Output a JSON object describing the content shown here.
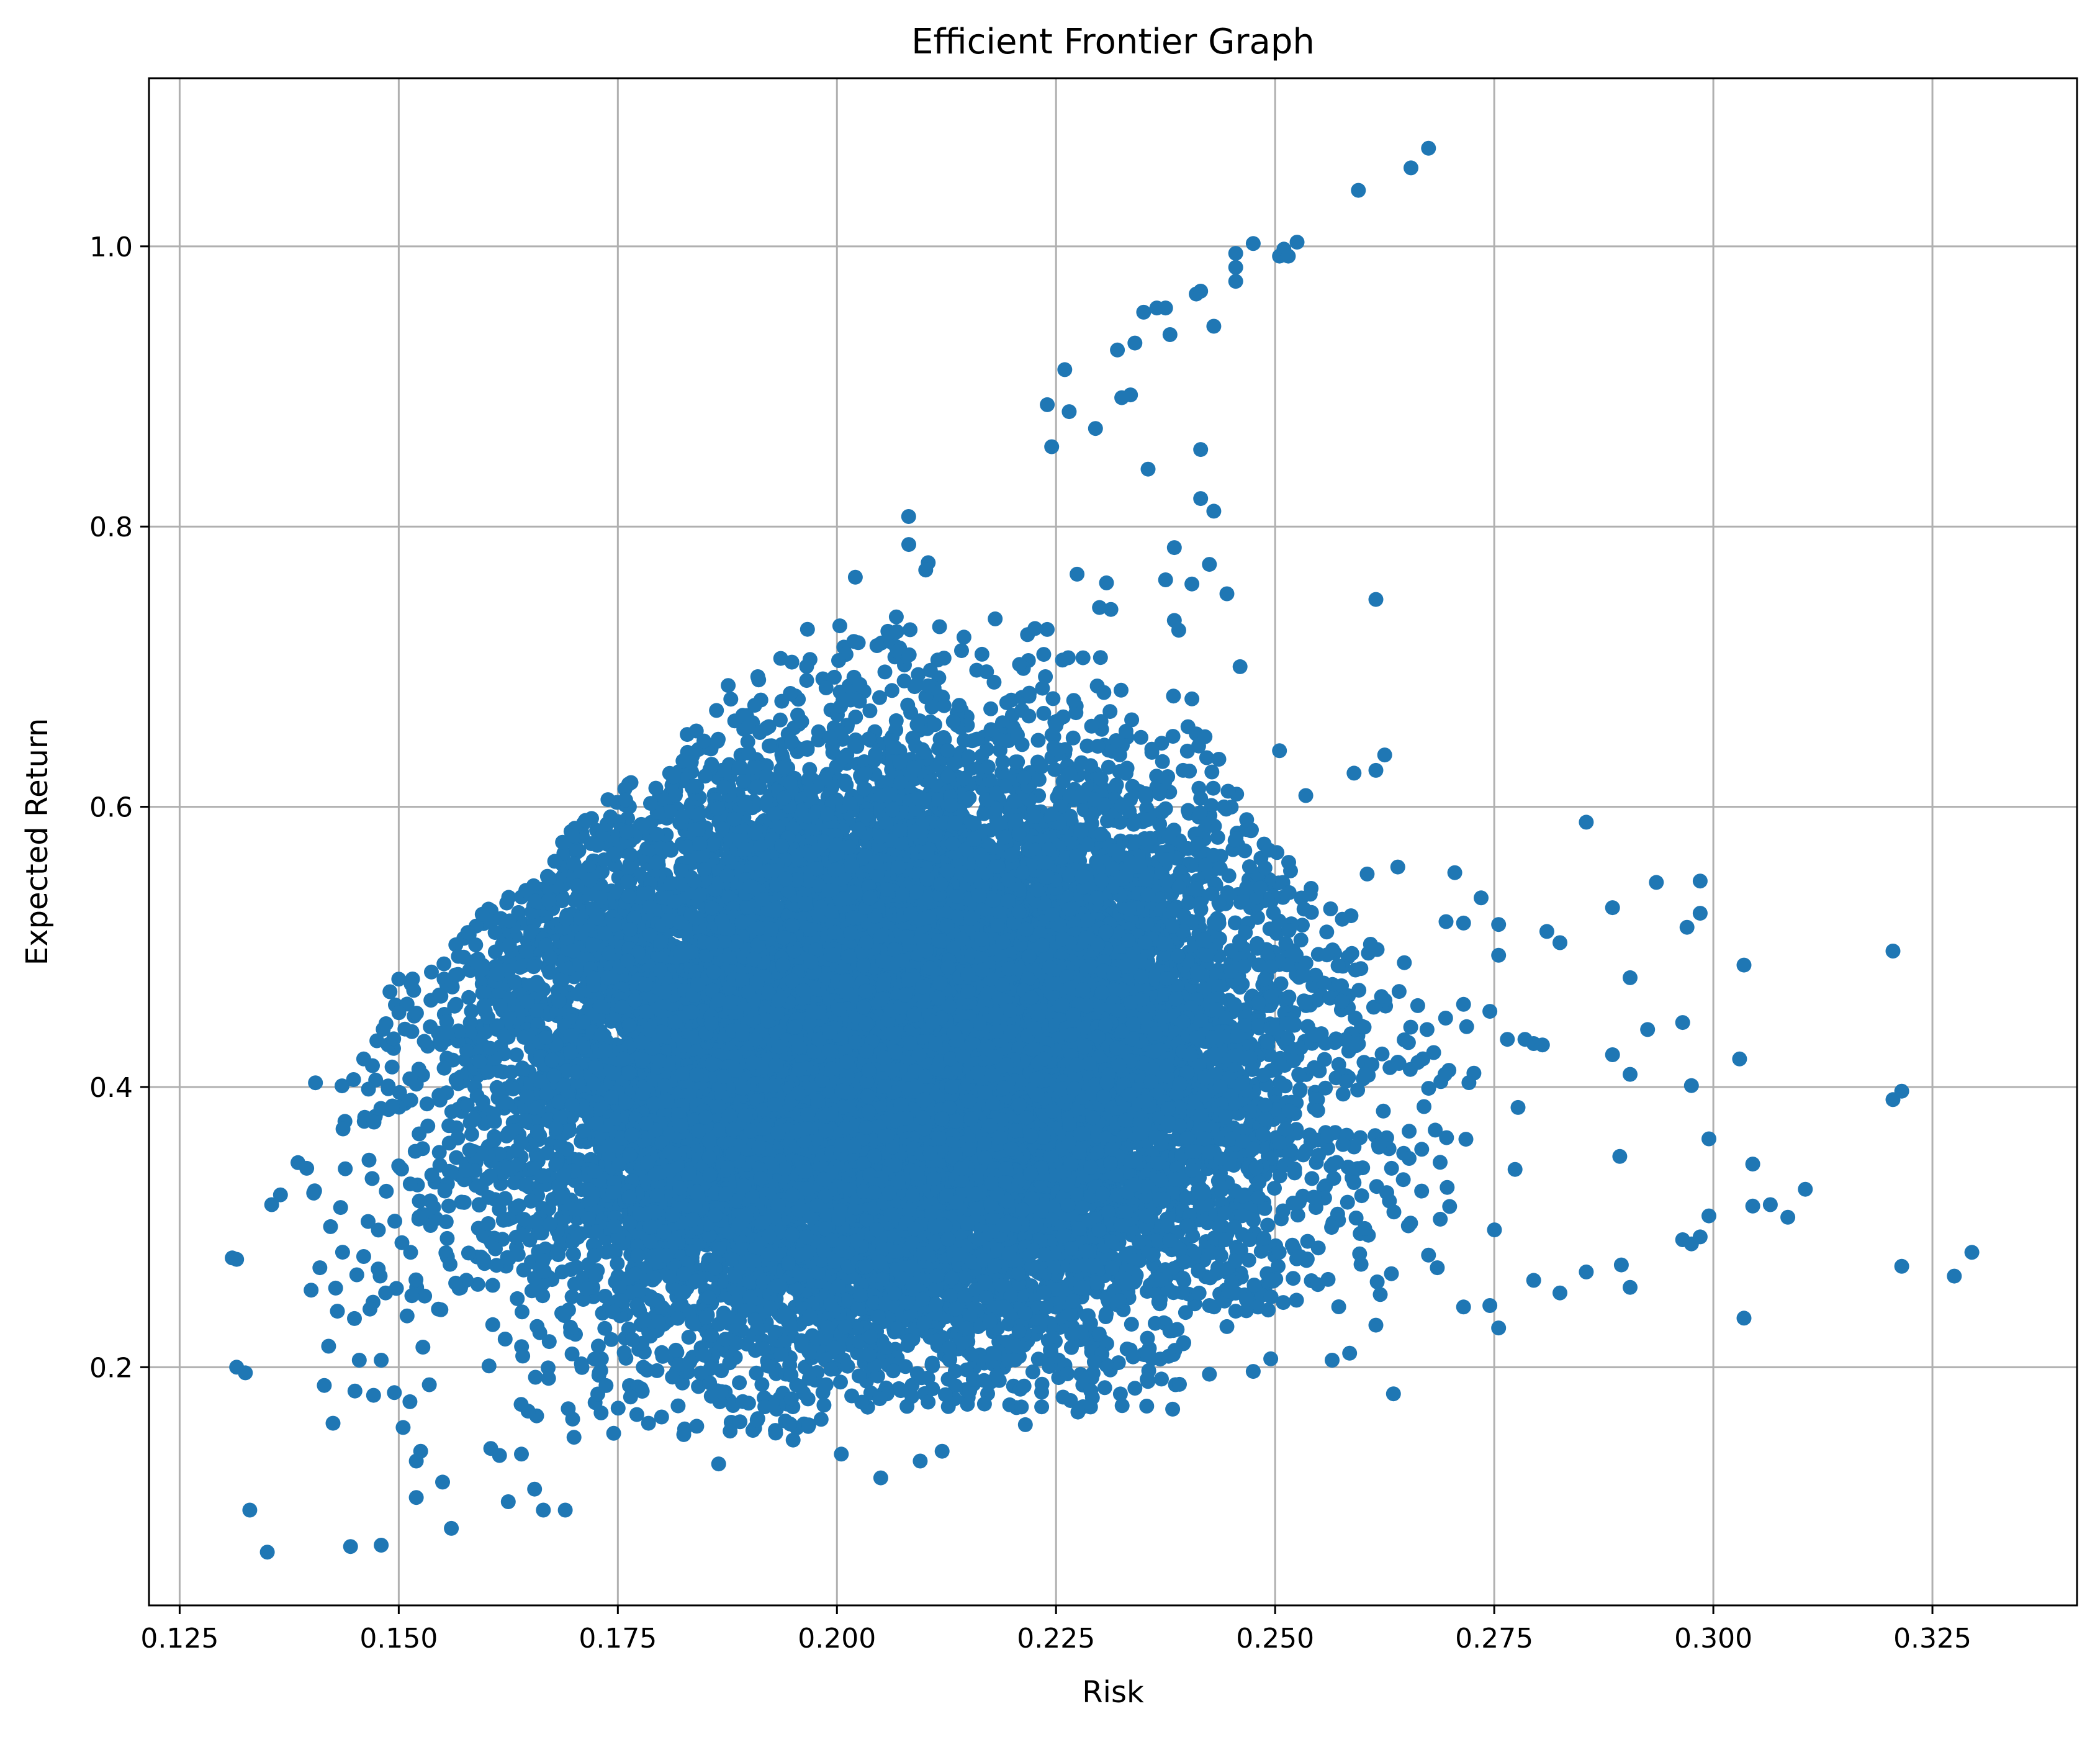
{
  "chart_data": {
    "type": "scatter",
    "title": "Efficient Frontier Graph",
    "xlabel": "Risk",
    "ylabel": "Expected Return",
    "xlim": [
      0.1215,
      0.3415
    ],
    "ylim": [
      0.03,
      1.12
    ],
    "xticks": [
      0.125,
      0.15,
      0.175,
      0.2,
      0.225,
      0.25,
      0.275,
      0.3,
      0.325
    ],
    "xtick_labels": [
      "0.125",
      "0.150",
      "0.175",
      "0.200",
      "0.225",
      "0.250",
      "0.275",
      "0.300",
      "0.325"
    ],
    "yticks": [
      0.2,
      0.4,
      0.6,
      0.8,
      1.0
    ],
    "ytick_labels": [
      "0.2",
      "0.4",
      "0.6",
      "0.8",
      "1.0"
    ],
    "grid": true,
    "legend": "none",
    "marker_color": "#1f77b4",
    "generated_cloud": {
      "count": 18000,
      "seed": 20240613,
      "center_x": 0.206,
      "center_y": 0.42,
      "sigma_x": 0.022,
      "sigma_y": 0.105
    },
    "series": [
      {
        "points": [
          [
            0.131,
            0.278
          ],
          [
            0.1315,
            0.277
          ],
          [
            0.1315,
            0.2
          ],
          [
            0.1325,
            0.196
          ],
          [
            0.133,
            0.098
          ],
          [
            0.135,
            0.068
          ],
          [
            0.1355,
            0.316
          ],
          [
            0.1365,
            0.323
          ],
          [
            0.1385,
            0.346
          ],
          [
            0.1395,
            0.342
          ],
          [
            0.14,
            0.255
          ],
          [
            0.1405,
            0.403
          ],
          [
            0.141,
            0.271
          ],
          [
            0.1415,
            0.187
          ],
          [
            0.142,
            0.215
          ],
          [
            0.1425,
            0.16
          ],
          [
            0.143,
            0.24
          ],
          [
            0.1445,
            0.072
          ],
          [
            0.145,
            0.183
          ],
          [
            0.1455,
            0.205
          ],
          [
            0.146,
            0.279
          ],
          [
            0.146,
            0.42
          ],
          [
            0.1465,
            0.304
          ],
          [
            0.1475,
            0.433
          ],
          [
            0.148,
            0.073
          ],
          [
            0.148,
            0.205
          ],
          [
            0.1485,
            0.253
          ],
          [
            0.149,
            0.468
          ],
          [
            0.15,
            0.477
          ],
          [
            0.1505,
            0.157
          ],
          [
            0.1515,
            0.251
          ],
          [
            0.152,
            0.133
          ],
          [
            0.152,
            0.107
          ],
          [
            0.1525,
            0.14
          ],
          [
            0.155,
            0.118
          ],
          [
            0.156,
            0.085
          ],
          [
            0.1565,
            0.26
          ],
          [
            0.1605,
            0.142
          ],
          [
            0.1615,
            0.137
          ],
          [
            0.1625,
            0.104
          ],
          [
            0.164,
            0.138
          ],
          [
            0.1655,
            0.113
          ],
          [
            0.1665,
            0.098
          ],
          [
            0.169,
            0.098
          ],
          [
            0.17,
            0.15
          ],
          [
            0.1785,
            0.16
          ],
          [
            0.1865,
            0.131
          ],
          [
            0.193,
            0.153
          ],
          [
            0.195,
            0.148
          ],
          [
            0.2005,
            0.138
          ],
          [
            0.205,
            0.121
          ],
          [
            0.2095,
            0.133
          ],
          [
            0.212,
            0.14
          ],
          [
            0.2215,
            0.159
          ],
          [
            0.2275,
            0.168
          ],
          [
            0.234,
            0.185
          ],
          [
            0.2425,
            0.195
          ],
          [
            0.2635,
            0.181
          ],
          [
            0.2595,
            1.04
          ],
          [
            0.2655,
            1.056
          ],
          [
            0.2675,
            1.07
          ],
          [
            0.2475,
            1.002
          ],
          [
            0.2455,
            0.995
          ],
          [
            0.2455,
            0.985
          ],
          [
            0.2455,
            0.975
          ],
          [
            0.2505,
            0.993
          ],
          [
            0.251,
            0.998
          ],
          [
            0.2515,
            0.993
          ],
          [
            0.2525,
            1.003
          ],
          [
            0.241,
            0.966
          ],
          [
            0.2415,
            0.968
          ],
          [
            0.243,
            0.943
          ],
          [
            0.238,
            0.937
          ],
          [
            0.2365,
            0.956
          ],
          [
            0.2375,
            0.956
          ],
          [
            0.234,
            0.931
          ],
          [
            0.235,
            0.953
          ],
          [
            0.232,
            0.926
          ],
          [
            0.226,
            0.912
          ],
          [
            0.2335,
            0.894
          ],
          [
            0.2325,
            0.892
          ],
          [
            0.224,
            0.887
          ],
          [
            0.2245,
            0.857
          ],
          [
            0.2265,
            0.882
          ],
          [
            0.2295,
            0.87
          ],
          [
            0.2355,
            0.841
          ],
          [
            0.2415,
            0.855
          ],
          [
            0.2415,
            0.82
          ],
          [
            0.243,
            0.811
          ],
          [
            0.2385,
            0.785
          ],
          [
            0.2445,
            0.752
          ],
          [
            0.2405,
            0.759
          ],
          [
            0.2385,
            0.733
          ],
          [
            0.239,
            0.726
          ],
          [
            0.2375,
            0.762
          ],
          [
            0.2425,
            0.773
          ],
          [
            0.246,
            0.7
          ],
          [
            0.2405,
            0.677
          ],
          [
            0.241,
            0.652
          ],
          [
            0.242,
            0.65
          ],
          [
            0.2395,
            0.626
          ],
          [
            0.2415,
            0.606
          ],
          [
            0.2505,
            0.64
          ],
          [
            0.2535,
            0.608
          ],
          [
            0.2615,
            0.748
          ],
          [
            0.2625,
            0.637
          ],
          [
            0.2615,
            0.626
          ],
          [
            0.259,
            0.624
          ],
          [
            0.2605,
            0.552
          ],
          [
            0.264,
            0.557
          ],
          [
            0.2705,
            0.553
          ],
          [
            0.2735,
            0.535
          ],
          [
            0.2755,
            0.516
          ],
          [
            0.2695,
            0.518
          ],
          [
            0.2715,
            0.517
          ],
          [
            0.2755,
            0.494
          ],
          [
            0.2855,
            0.589
          ],
          [
            0.2885,
            0.528
          ],
          [
            0.2935,
            0.546
          ],
          [
            0.2985,
            0.547
          ],
          [
            0.2985,
            0.524
          ],
          [
            0.297,
            0.514
          ],
          [
            0.2905,
            0.478
          ],
          [
            0.2965,
            0.446
          ],
          [
            0.2925,
            0.441
          ],
          [
            0.2885,
            0.423
          ],
          [
            0.2905,
            0.409
          ],
          [
            0.2975,
            0.401
          ],
          [
            0.2825,
            0.503
          ],
          [
            0.281,
            0.511
          ],
          [
            0.2795,
            0.431
          ],
          [
            0.2805,
            0.43
          ],
          [
            0.2765,
            0.434
          ],
          [
            0.2785,
            0.434
          ],
          [
            0.2745,
            0.454
          ],
          [
            0.2715,
            0.459
          ],
          [
            0.303,
            0.42
          ],
          [
            0.3035,
            0.487
          ],
          [
            0.3205,
            0.497
          ],
          [
            0.3205,
            0.391
          ],
          [
            0.3215,
            0.397
          ],
          [
            0.2995,
            0.363
          ],
          [
            0.3045,
            0.345
          ],
          [
            0.3045,
            0.315
          ],
          [
            0.3065,
            0.316
          ],
          [
            0.3085,
            0.307
          ],
          [
            0.3105,
            0.327
          ],
          [
            0.2995,
            0.308
          ],
          [
            0.2985,
            0.293
          ],
          [
            0.2975,
            0.288
          ],
          [
            0.2965,
            0.291
          ],
          [
            0.3215,
            0.272
          ],
          [
            0.3275,
            0.265
          ],
          [
            0.3295,
            0.282
          ],
          [
            0.3035,
            0.235
          ],
          [
            0.2905,
            0.257
          ],
          [
            0.2895,
            0.273
          ],
          [
            0.2855,
            0.268
          ],
          [
            0.2825,
            0.253
          ],
          [
            0.2795,
            0.262
          ],
          [
            0.2755,
            0.228
          ],
          [
            0.2745,
            0.244
          ],
          [
            0.2715,
            0.243
          ],
          [
            0.2685,
            0.271
          ],
          [
            0.2675,
            0.28
          ],
          [
            0.2615,
            0.23
          ],
          [
            0.2585,
            0.21
          ],
          [
            0.2565,
            0.205
          ],
          [
            0.2495,
            0.206
          ],
          [
            0.2475,
            0.197
          ],
          [
            0.2455,
            0.24
          ],
          [
            0.2425,
            0.244
          ],
          [
            0.2445,
            0.229
          ]
        ]
      }
    ]
  }
}
